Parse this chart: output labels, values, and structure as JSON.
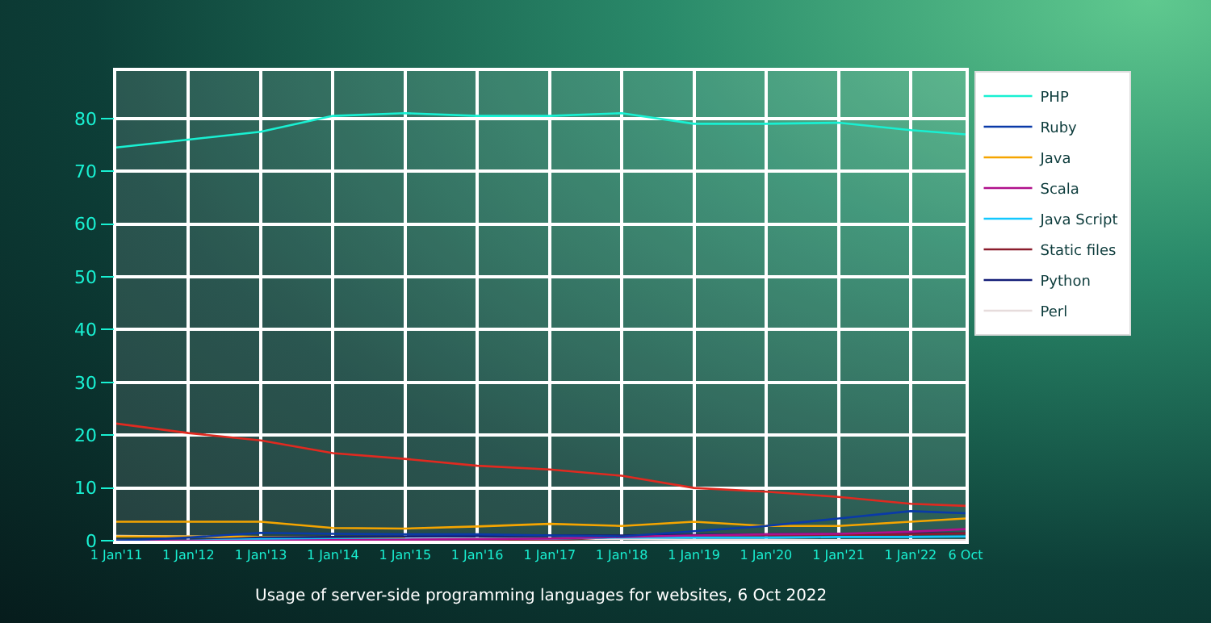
{
  "chart_data": {
    "type": "line",
    "annotations": [
      "Usage of server-side programming languages for websites, 6 Oct 2022"
    ],
    "x": [
      "2011-01-01",
      "2012-01-01",
      "2013-01-01",
      "2014-01-01",
      "2015-01-01",
      "2016-01-01",
      "2017-01-01",
      "2018-01-01",
      "2019-01-01",
      "2020-01-01",
      "2021-01-01",
      "2022-01-01",
      "2022-10-06"
    ],
    "xlim": [
      "2011-01-01",
      "2022-10-06"
    ],
    "xticks": [
      {
        "value": "2011-01-01",
        "label": "1 Jan'11"
      },
      {
        "value": "2012-01-01",
        "label": "1 Jan'12"
      },
      {
        "value": "2013-01-01",
        "label": "1 Jan'13"
      },
      {
        "value": "2014-01-01",
        "label": "1 Jan'14"
      },
      {
        "value": "2015-01-01",
        "label": "1 Jan'15"
      },
      {
        "value": "2016-01-01",
        "label": "1 Jan'16"
      },
      {
        "value": "2017-01-01",
        "label": "1 Jan'17"
      },
      {
        "value": "2018-01-01",
        "label": "1 Jan'18"
      },
      {
        "value": "2019-01-01",
        "label": "1 Jan'19"
      },
      {
        "value": "2020-01-01",
        "label": "1 Jan'20"
      },
      {
        "value": "2021-01-01",
        "label": "1 Jan'21"
      },
      {
        "value": "2022-01-01",
        "label": "1 Jan'22"
      },
      {
        "value": "2022-10-06",
        "label": "6 Oct"
      }
    ],
    "ylim": [
      0,
      89
    ],
    "yticks": [
      0,
      10,
      20,
      30,
      40,
      50,
      60,
      70,
      80
    ],
    "grid": true,
    "legend": "top right",
    "marker": "none",
    "line_style": "solid",
    "series": [
      {
        "name": "PHP",
        "color": "#19f0d2",
        "values": [
          74.5,
          76,
          77.5,
          80.5,
          81,
          80.5,
          80.5,
          81,
          79,
          79,
          79.2,
          77.8,
          77
        ]
      },
      {
        "color": "#e02a20",
        "values": [
          22.2,
          20.4,
          19,
          16.6,
          15.5,
          14.2,
          13.5,
          12.3,
          10,
          9.3,
          8.3,
          7,
          6.6
        ]
      },
      {
        "name": "Ruby",
        "color": "#0a3aa8",
        "values": [
          0,
          0.6,
          1.5,
          1.3,
          1.2,
          1.2,
          1,
          0.8,
          1.8,
          2.8,
          4.2,
          5.6,
          5.2
        ]
      },
      {
        "name": "Java",
        "color": "#f5a500",
        "values": [
          3.6,
          3.6,
          3.6,
          2.4,
          2.3,
          2.7,
          3.2,
          2.8,
          3.6,
          2.8,
          2.8,
          3.6,
          4.2
        ]
      },
      {
        "name": "Scala",
        "color": "#b0108c",
        "values": [
          0,
          0,
          0,
          0.1,
          0.2,
          0.3,
          0.4,
          0.7,
          1,
          1.2,
          1.3,
          1.7,
          2.2
        ]
      },
      {
        "name": "Java Script",
        "color": "#12c8ff",
        "values": [
          0,
          0,
          0.3,
          0.3,
          0.3,
          0.3,
          0.4,
          0.6,
          0.6,
          0.6,
          0.7,
          0.7,
          0.8
        ]
      },
      {
        "name": "Static files",
        "color": "#8a1c2c",
        "values": [
          null,
          null,
          null,
          null,
          0,
          0,
          0,
          0.8,
          0.9,
          1,
          1,
          1.2,
          1.4
        ]
      },
      {
        "name": "Python",
        "color": "#141e78",
        "values": [
          0,
          0,
          0.6,
          0.7,
          0.8,
          0.9,
          1,
          1,
          1.1,
          1.2,
          1.3,
          1.4,
          1.4
        ]
      },
      {
        "color": "#f8a800",
        "values": [
          0.8,
          0.8,
          0.7,
          0.6,
          0.5,
          null,
          null,
          null,
          null,
          null,
          null,
          null,
          null
        ]
      },
      {
        "name": "Perl",
        "color": "#e6dcdc",
        "values": [
          0.9,
          0.8,
          0.7,
          0.6,
          0.5,
          0.4,
          0.3,
          0.3,
          0.2,
          0.2,
          0.1,
          0.1,
          0.1
        ]
      }
    ]
  }
}
